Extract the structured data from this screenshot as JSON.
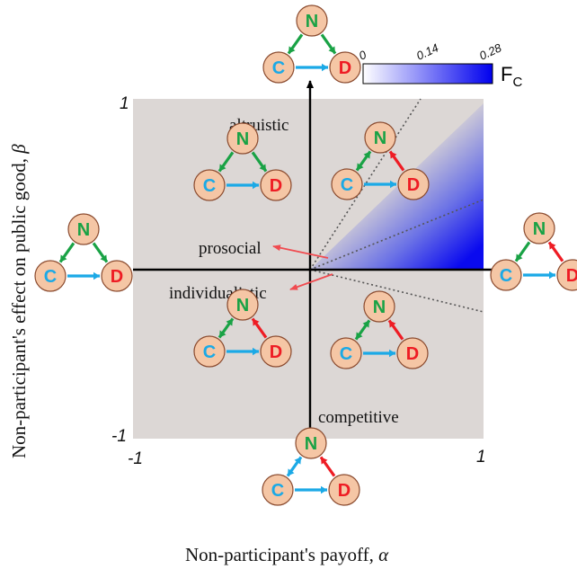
{
  "axes": {
    "x_label": "Non-participant's payoff, ",
    "x_symbol": "α",
    "y_label": "Non-participant's effect on public good, ",
    "y_symbol": "β",
    "x_min_tick": "-1",
    "x_max_tick": "1",
    "y_min_tick": "-1",
    "y_max_tick": "1"
  },
  "colorbar": {
    "label": "F",
    "label_sub": "C",
    "ticks": [
      "0",
      "0.14",
      "0.28"
    ],
    "color_low": "#ffffff",
    "color_high": "#0000ee"
  },
  "regions": {
    "altruistic": "altruistic",
    "prosocial": "prosocial",
    "individualistic": "individualistic",
    "competitive": "competitive"
  },
  "node_letters": {
    "n": "N",
    "c": "C",
    "d": "D"
  },
  "colors": {
    "plot_background": "#dcd7d5",
    "node_fill": "#f5c6a5",
    "n_color": "#19a245",
    "c_color": "#1ba9e6",
    "d_color": "#ee1c24",
    "pointer_color": "#f04b50",
    "boundary_color": "#555555"
  },
  "motifs": [
    {
      "id": "top",
      "left": "green",
      "right": "green",
      "bottom": "blue"
    },
    {
      "id": "q2",
      "left": "green",
      "right": "green",
      "bottom": "blue"
    },
    {
      "id": "q1",
      "left": "green-double",
      "right": "red",
      "bottom": "blue"
    },
    {
      "id": "left",
      "left": "green",
      "right": "green",
      "bottom": "blue"
    },
    {
      "id": "right",
      "left": "green",
      "right": "red",
      "bottom": "blue"
    },
    {
      "id": "q3",
      "left": "green-double",
      "right": "red",
      "bottom": "blue"
    },
    {
      "id": "q4",
      "left": "green-double",
      "right": "red",
      "bottom": "blue"
    },
    {
      "id": "bottom",
      "left": "blue-double",
      "right": "red",
      "bottom": "blue"
    }
  ]
}
